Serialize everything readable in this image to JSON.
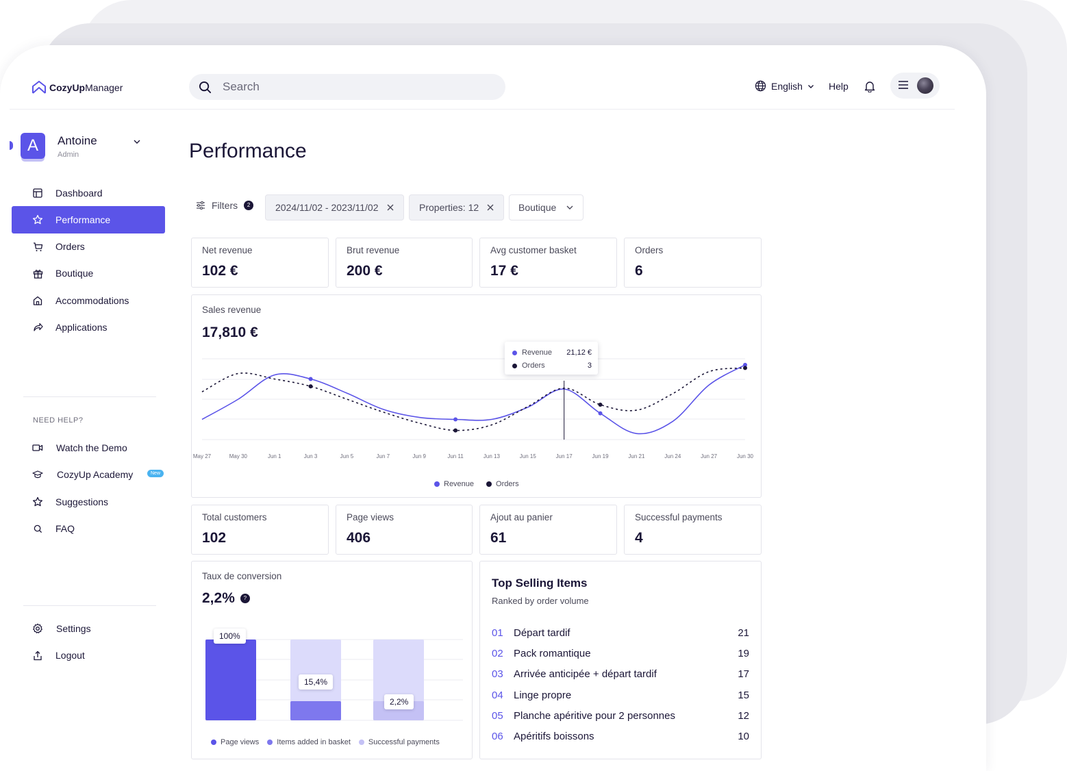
{
  "app": {
    "logo_bold": "CozyUp",
    "logo_rest": "Manager"
  },
  "search": {
    "placeholder": "Search"
  },
  "header": {
    "language": "English",
    "help": "Help"
  },
  "user": {
    "initial": "A",
    "name": "Antoine",
    "role": "Admin"
  },
  "nav": [
    {
      "label": "Dashboard",
      "icon": "dashboard-icon"
    },
    {
      "label": "Performance",
      "icon": "star-icon",
      "active": true
    },
    {
      "label": "Orders",
      "icon": "cart-icon"
    },
    {
      "label": "Boutique",
      "icon": "gift-icon"
    },
    {
      "label": "Accommodations",
      "icon": "home-icon"
    },
    {
      "label": "Applications",
      "icon": "share-icon"
    }
  ],
  "help_section": {
    "title": "NEED HELP?",
    "items": [
      {
        "label": "Watch the Demo",
        "icon": "video-icon"
      },
      {
        "label": "CozyUp Academy",
        "icon": "graduation-cap-icon",
        "badge": "New"
      },
      {
        "label": "Suggestions",
        "icon": "star-icon"
      },
      {
        "label": "FAQ",
        "icon": "search-icon"
      }
    ]
  },
  "footer_nav": [
    {
      "label": "Settings",
      "icon": "gear-icon"
    },
    {
      "label": "Logout",
      "icon": "logout-icon"
    }
  ],
  "page": {
    "title": "Performance"
  },
  "filters": {
    "label": "Filters",
    "count": "2",
    "date_range": "2024/11/02 - 2023/11/02",
    "properties": "Properties: 12",
    "dropdown": "Boutique"
  },
  "kpis_top": [
    {
      "label": "Net revenue",
      "value": "102 €"
    },
    {
      "label": "Brut revenue",
      "value": "200 €"
    },
    {
      "label": "Avg customer basket",
      "value": "17 €"
    },
    {
      "label": "Orders",
      "value": "6"
    }
  ],
  "kpis_bottom": [
    {
      "label": "Total customers",
      "value": "102"
    },
    {
      "label": "Page views",
      "value": "406"
    },
    {
      "label": "Ajout au panier",
      "value": "61"
    },
    {
      "label": "Successful payments",
      "value": "4"
    }
  ],
  "sales": {
    "label": "Sales revenue",
    "value": "17,810 €",
    "tooltip": {
      "revenue_label": "Revenue",
      "revenue_value": "21,12 €",
      "orders_label": "Orders",
      "orders_value": "3"
    }
  },
  "conversion": {
    "label": "Taux de conversion",
    "value": "2,2%",
    "help": "?"
  },
  "top_selling": {
    "title": "Top Selling Items",
    "subtitle": "Ranked by order volume",
    "items": [
      {
        "rank": "01",
        "name": "Départ tardif",
        "count": "21"
      },
      {
        "rank": "02",
        "name": "Pack romantique",
        "count": "19"
      },
      {
        "rank": "03",
        "name": "Arrivée anticipée + départ tardif",
        "count": "17"
      },
      {
        "rank": "04",
        "name": "Linge propre",
        "count": "15"
      },
      {
        "rank": "05",
        "name": "Planche apéritive pour 2 personnes",
        "count": "12"
      },
      {
        "rank": "06",
        "name": "Apéritifs boissons",
        "count": "10"
      }
    ]
  },
  "colors": {
    "accent": "#5b54e8",
    "dark": "#1b1637",
    "light_accent": "#dcdbfb",
    "mid_accent": "#7e78ee"
  },
  "chart_data": [
    {
      "type": "line",
      "x": [
        "May 27",
        "May 30",
        "Jun 1",
        "Jun 3",
        "Jun 5",
        "Jun 7",
        "Jun 9",
        "Jun 11",
        "Jun 13",
        "Jun 15",
        "Jun 17",
        "Jun 19",
        "Jun 21",
        "Jun 24",
        "Jun 27",
        "Jun 30"
      ],
      "series": [
        {
          "name": "Revenue",
          "color": "#5b54e8",
          "values": [
            6,
            16,
            28,
            26,
            19,
            11,
            7,
            6,
            6,
            12,
            21,
            9,
            -1,
            5,
            23,
            33
          ]
        },
        {
          "name": "Orders",
          "color": "#1b1637",
          "values": [
            2,
            3,
            2.7,
            2.3,
            1.6,
            0.9,
            0.3,
            -0.1,
            0.2,
            1.2,
            2.2,
            1.3,
            1.0,
            1.9,
            3.1,
            3.3
          ]
        }
      ],
      "legend": "bottom",
      "grid": true
    },
    {
      "type": "bar",
      "categories": [
        "Page views",
        "Items added in basket",
        "Successful payments"
      ],
      "values": [
        100,
        15.4,
        2.2
      ],
      "labels": [
        "100%",
        "15,4%",
        "2,2%"
      ],
      "legend": "bottom"
    }
  ]
}
